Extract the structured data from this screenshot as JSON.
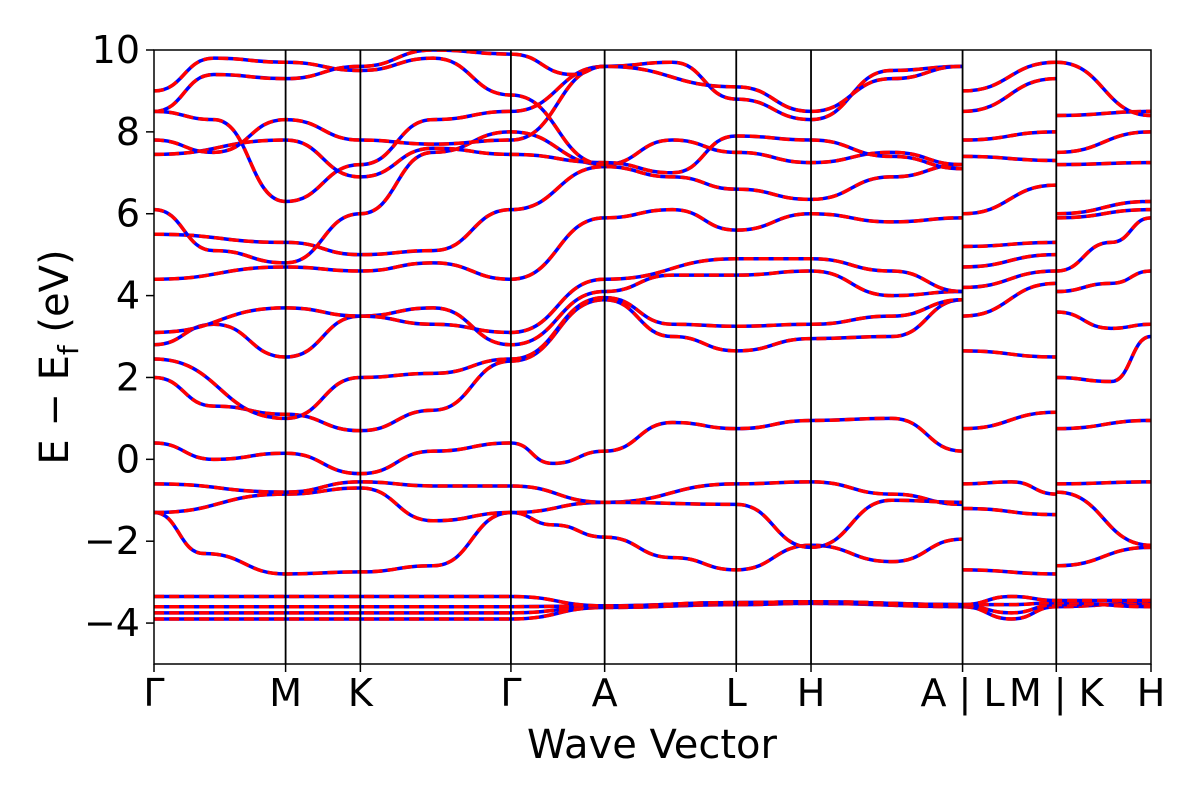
{
  "chart_data": {
    "type": "line",
    "title": "",
    "xlabel": "Wave Vector",
    "ylabel_parts": {
      "main": "E − E",
      "sub": "f",
      "unit": " (eV)"
    },
    "ylim": [
      -5,
      10
    ],
    "y_ticks": [
      -4,
      -2,
      0,
      2,
      4,
      6,
      8,
      10
    ],
    "y_tick_labels": [
      "−4",
      "−2",
      "0",
      "2",
      "4",
      "6",
      "8",
      "10"
    ],
    "x_range": [
      0,
      1.0
    ],
    "high_symmetry_points": [
      {
        "label": "Γ",
        "x": 0.0
      },
      {
        "label": "M",
        "x": 0.132
      },
      {
        "label": "K",
        "x": 0.207
      },
      {
        "label": "Γ",
        "x": 0.358
      },
      {
        "label": "A",
        "x": 0.452
      },
      {
        "label": "L",
        "x": 0.584
      },
      {
        "label": "H",
        "x": 0.659
      },
      {
        "label": "A | L",
        "x": 0.811
      },
      {
        "label": "M | K",
        "x": 0.905
      },
      {
        "label": "H",
        "x": 1.0
      }
    ],
    "series": [
      {
        "color": "#0000ff",
        "style": "solid"
      },
      {
        "color": "#ff0000",
        "style": "dashed"
      }
    ],
    "bands": [
      [
        [
          0.0,
          -3.9
        ],
        [
          0.132,
          -3.9
        ],
        [
          0.207,
          -3.9
        ],
        [
          0.358,
          -3.9
        ],
        [
          0.452,
          -3.62
        ],
        [
          0.584,
          -3.55
        ],
        [
          0.659,
          -3.52
        ],
        [
          0.811,
          -3.6
        ],
        [
          0.86,
          -3.9
        ],
        [
          0.905,
          -3.6
        ],
        [
          1.0,
          -3.5
        ]
      ],
      [
        [
          0.0,
          -3.75
        ],
        [
          0.132,
          -3.75
        ],
        [
          0.207,
          -3.75
        ],
        [
          0.358,
          -3.75
        ],
        [
          0.452,
          -3.6
        ],
        [
          0.584,
          -3.52
        ],
        [
          0.659,
          -3.5
        ],
        [
          0.811,
          -3.58
        ],
        [
          0.86,
          -3.75
        ],
        [
          0.905,
          -3.55
        ],
        [
          1.0,
          -3.55
        ]
      ],
      [
        [
          0.0,
          -3.6
        ],
        [
          0.132,
          -3.6
        ],
        [
          0.207,
          -3.6
        ],
        [
          0.358,
          -3.6
        ],
        [
          0.452,
          -3.58
        ],
        [
          0.584,
          -3.5
        ],
        [
          0.659,
          -3.48
        ],
        [
          0.811,
          -3.55
        ],
        [
          0.86,
          -3.55
        ],
        [
          0.905,
          -3.5
        ],
        [
          1.0,
          -3.6
        ]
      ],
      [
        [
          0.0,
          -3.35
        ],
        [
          0.132,
          -3.35
        ],
        [
          0.207,
          -3.35
        ],
        [
          0.358,
          -3.35
        ],
        [
          0.452,
          -3.58
        ],
        [
          0.584,
          -3.5
        ],
        [
          0.659,
          -3.48
        ],
        [
          0.811,
          -3.55
        ],
        [
          0.86,
          -3.35
        ],
        [
          0.905,
          -3.45
        ],
        [
          1.0,
          -3.45
        ]
      ],
      [
        [
          0.0,
          -1.3
        ],
        [
          0.05,
          -2.3
        ],
        [
          0.132,
          -2.8
        ],
        [
          0.207,
          -2.75
        ],
        [
          0.28,
          -2.6
        ],
        [
          0.358,
          -1.3
        ],
        [
          0.4,
          -1.6
        ],
        [
          0.452,
          -1.9
        ],
        [
          0.52,
          -2.4
        ],
        [
          0.584,
          -2.7
        ],
        [
          0.659,
          -2.1
        ],
        [
          0.74,
          -2.5
        ],
        [
          0.811,
          -1.95
        ],
        [
          0.811,
          -2.7
        ],
        [
          0.905,
          -2.8
        ],
        [
          0.905,
          -2.6
        ],
        [
          1.0,
          -2.15
        ]
      ],
      [
        [
          0.0,
          -1.3
        ],
        [
          0.132,
          -0.85
        ],
        [
          0.207,
          -0.7
        ],
        [
          0.28,
          -1.5
        ],
        [
          0.358,
          -1.3
        ],
        [
          0.452,
          -1.05
        ],
        [
          0.584,
          -0.6
        ],
        [
          0.659,
          -0.55
        ],
        [
          0.74,
          -0.85
        ],
        [
          0.811,
          -1.1
        ],
        [
          0.811,
          -0.6
        ],
        [
          0.86,
          -0.55
        ],
        [
          0.905,
          -0.85
        ],
        [
          0.905,
          -0.6
        ],
        [
          1.0,
          -0.55
        ]
      ],
      [
        [
          0.0,
          -0.6
        ],
        [
          0.132,
          -0.8
        ],
        [
          0.207,
          -0.55
        ],
        [
          0.28,
          -0.65
        ],
        [
          0.358,
          -0.65
        ],
        [
          0.452,
          -1.05
        ],
        [
          0.584,
          -1.1
        ],
        [
          0.659,
          -2.15
        ],
        [
          0.74,
          -1.0
        ],
        [
          0.811,
          -1.05
        ],
        [
          0.811,
          -1.2
        ],
        [
          0.905,
          -1.35
        ],
        [
          0.905,
          -0.8
        ],
        [
          1.0,
          -2.1
        ]
      ],
      [
        [
          0.0,
          0.4
        ],
        [
          0.06,
          0.0
        ],
        [
          0.132,
          0.15
        ],
        [
          0.207,
          -0.35
        ],
        [
          0.28,
          0.2
        ],
        [
          0.358,
          0.4
        ],
        [
          0.4,
          -0.1
        ],
        [
          0.452,
          0.2
        ],
        [
          0.52,
          0.9
        ],
        [
          0.584,
          0.75
        ],
        [
          0.659,
          0.95
        ],
        [
          0.74,
          1.0
        ],
        [
          0.811,
          0.2
        ],
        [
          0.811,
          0.75
        ],
        [
          0.905,
          1.15
        ],
        [
          0.905,
          0.75
        ],
        [
          1.0,
          0.95
        ]
      ],
      [
        [
          0.0,
          2.0
        ],
        [
          0.06,
          1.3
        ],
        [
          0.132,
          1.1
        ],
        [
          0.207,
          0.7
        ],
        [
          0.28,
          1.2
        ],
        [
          0.358,
          2.4
        ],
        [
          0.452,
          3.9
        ],
        [
          0.52,
          3.0
        ],
        [
          0.584,
          2.65
        ],
        [
          0.659,
          2.95
        ],
        [
          0.74,
          3.0
        ],
        [
          0.811,
          3.9
        ],
        [
          0.811,
          2.65
        ],
        [
          0.905,
          2.5
        ],
        [
          0.905,
          2.0
        ],
        [
          0.96,
          1.9
        ],
        [
          1.0,
          3.0
        ]
      ],
      [
        [
          0.0,
          2.45
        ],
        [
          0.132,
          1.0
        ],
        [
          0.207,
          2.0
        ],
        [
          0.28,
          2.1
        ],
        [
          0.358,
          2.45
        ],
        [
          0.452,
          3.95
        ],
        [
          0.52,
          3.3
        ],
        [
          0.584,
          3.25
        ],
        [
          0.659,
          3.3
        ],
        [
          0.74,
          3.5
        ],
        [
          0.811,
          3.9
        ],
        [
          0.811,
          3.5
        ],
        [
          0.905,
          4.3
        ],
        [
          0.905,
          3.6
        ],
        [
          0.96,
          3.2
        ],
        [
          1.0,
          3.3
        ]
      ],
      [
        [
          0.0,
          2.8
        ],
        [
          0.06,
          3.3
        ],
        [
          0.132,
          2.5
        ],
        [
          0.207,
          3.5
        ],
        [
          0.28,
          3.7
        ],
        [
          0.358,
          2.8
        ],
        [
          0.452,
          4.1
        ],
        [
          0.52,
          4.5
        ],
        [
          0.584,
          4.5
        ],
        [
          0.659,
          4.6
        ],
        [
          0.74,
          4.0
        ],
        [
          0.811,
          4.1
        ],
        [
          0.811,
          4.2
        ],
        [
          0.905,
          4.6
        ],
        [
          0.905,
          4.1
        ],
        [
          0.96,
          4.3
        ],
        [
          1.0,
          4.6
        ]
      ],
      [
        [
          0.0,
          3.1
        ],
        [
          0.132,
          3.7
        ],
        [
          0.207,
          3.5
        ],
        [
          0.28,
          3.3
        ],
        [
          0.358,
          3.1
        ],
        [
          0.452,
          4.4
        ],
        [
          0.584,
          4.9
        ],
        [
          0.659,
          4.9
        ],
        [
          0.74,
          4.6
        ],
        [
          0.811,
          4.1
        ],
        [
          0.811,
          4.7
        ],
        [
          0.905,
          5.0
        ],
        [
          0.905,
          4.6
        ],
        [
          0.96,
          5.3
        ],
        [
          1.0,
          5.9
        ]
      ],
      [
        [
          0.0,
          4.4
        ],
        [
          0.132,
          4.7
        ],
        [
          0.207,
          4.6
        ],
        [
          0.28,
          4.8
        ],
        [
          0.358,
          4.4
        ],
        [
          0.452,
          5.9
        ],
        [
          0.52,
          6.1
        ],
        [
          0.584,
          5.6
        ],
        [
          0.659,
          6.0
        ],
        [
          0.74,
          5.8
        ],
        [
          0.811,
          5.9
        ],
        [
          0.811,
          5.2
        ],
        [
          0.905,
          5.3
        ],
        [
          0.905,
          5.9
        ],
        [
          1.0,
          6.1
        ]
      ],
      [
        [
          0.0,
          5.5
        ],
        [
          0.132,
          5.3
        ],
        [
          0.207,
          5.0
        ],
        [
          0.28,
          5.1
        ],
        [
          0.358,
          6.1
        ],
        [
          0.452,
          7.15
        ],
        [
          0.52,
          6.9
        ],
        [
          0.584,
          6.6
        ],
        [
          0.659,
          6.35
        ],
        [
          0.74,
          6.9
        ],
        [
          0.811,
          7.2
        ],
        [
          0.811,
          6.0
        ],
        [
          0.905,
          6.7
        ],
        [
          0.905,
          6.0
        ],
        [
          1.0,
          6.3
        ]
      ],
      [
        [
          0.0,
          6.1
        ],
        [
          0.06,
          5.1
        ],
        [
          0.132,
          4.8
        ],
        [
          0.207,
          6.0
        ],
        [
          0.28,
          7.5
        ],
        [
          0.358,
          8.0
        ],
        [
          0.452,
          7.2
        ],
        [
          0.52,
          7.8
        ],
        [
          0.584,
          7.5
        ],
        [
          0.659,
          7.25
        ],
        [
          0.74,
          7.5
        ],
        [
          0.811,
          7.2
        ],
        [
          0.811,
          7.4
        ],
        [
          0.905,
          7.3
        ],
        [
          0.905,
          7.2
        ],
        [
          1.0,
          7.25
        ]
      ],
      [
        [
          0.0,
          7.45
        ],
        [
          0.132,
          7.8
        ],
        [
          0.207,
          6.9
        ],
        [
          0.28,
          7.6
        ],
        [
          0.358,
          7.45
        ],
        [
          0.452,
          7.25
        ],
        [
          0.52,
          7.0
        ],
        [
          0.584,
          7.9
        ],
        [
          0.659,
          7.8
        ],
        [
          0.74,
          7.4
        ],
        [
          0.811,
          7.1
        ],
        [
          0.811,
          7.8
        ],
        [
          0.905,
          8.0
        ],
        [
          0.905,
          7.5
        ],
        [
          1.0,
          8.0
        ]
      ],
      [
        [
          0.0,
          7.8
        ],
        [
          0.06,
          7.5
        ],
        [
          0.132,
          8.3
        ],
        [
          0.207,
          7.8
        ],
        [
          0.28,
          7.7
        ],
        [
          0.358,
          7.8
        ],
        [
          0.452,
          9.6
        ],
        [
          0.52,
          9.7
        ],
        [
          0.584,
          8.8
        ],
        [
          0.659,
          8.3
        ],
        [
          0.74,
          9.5
        ],
        [
          0.811,
          9.6
        ],
        [
          0.811,
          8.5
        ],
        [
          0.905,
          9.3
        ],
        [
          0.905,
          8.4
        ],
        [
          1.0,
          8.5
        ]
      ],
      [
        [
          0.0,
          8.5
        ],
        [
          0.06,
          8.3
        ],
        [
          0.132,
          6.3
        ],
        [
          0.207,
          7.2
        ],
        [
          0.28,
          8.3
        ],
        [
          0.358,
          8.5
        ],
        [
          0.452,
          9.6
        ],
        [
          0.584,
          9.1
        ],
        [
          0.659,
          8.5
        ],
        [
          0.74,
          9.3
        ],
        [
          0.811,
          9.6
        ],
        [
          0.811,
          9.0
        ],
        [
          0.905,
          9.7
        ],
        [
          0.905,
          9.7
        ],
        [
          1.0,
          8.4
        ]
      ],
      [
        [
          0.0,
          9.0
        ],
        [
          0.06,
          9.8
        ],
        [
          0.132,
          9.7
        ],
        [
          0.207,
          9.5
        ],
        [
          0.28,
          9.8
        ],
        [
          0.358,
          8.9
        ],
        [
          0.452,
          7.2
        ]
      ],
      [
        [
          0.0,
          8.5
        ],
        [
          0.06,
          9.4
        ],
        [
          0.132,
          9.3
        ],
        [
          0.207,
          9.6
        ],
        [
          0.28,
          10.0
        ],
        [
          0.358,
          9.9
        ],
        [
          0.42,
          9.4
        ],
        [
          0.452,
          9.6
        ]
      ]
    ]
  }
}
